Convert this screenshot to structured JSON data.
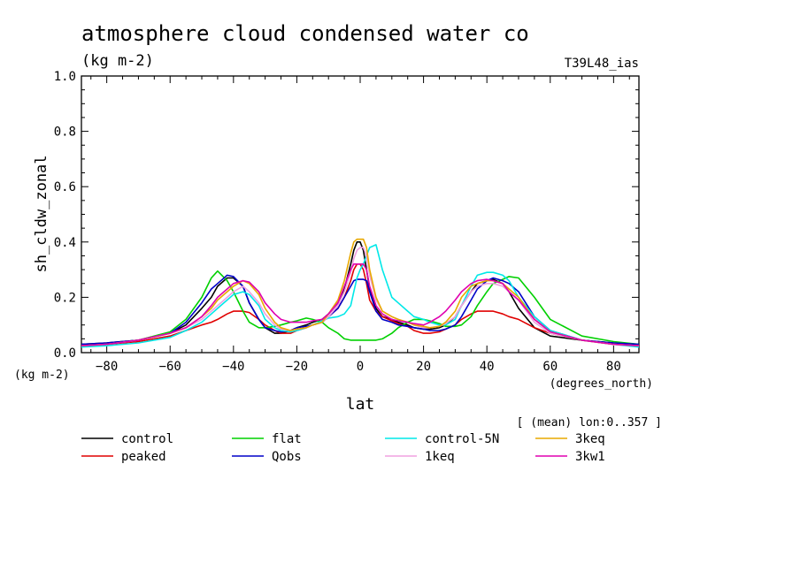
{
  "chart_data": {
    "type": "line",
    "title": "atmosphere cloud condensed water co",
    "subtitle": "(kg m-2)",
    "run_label": "T39L48_ias",
    "ylabel": "sh_cldw_zonal",
    "yunits": "(kg m-2)",
    "xlabel": "lat",
    "xunits": "(degrees_north)",
    "averaging_note": "[ (mean) lon:0..357 ]",
    "xlim": [
      -88,
      88
    ],
    "ylim": [
      0,
      1
    ],
    "xticks": [
      -80,
      -60,
      -40,
      -20,
      0,
      20,
      40,
      60,
      80
    ],
    "yticks": [
      0,
      0.2,
      0.4,
      0.6,
      0.8,
      1
    ],
    "ytick_labels": [
      "0.0",
      "0.2",
      "0.4",
      "0.6",
      "0.8",
      "1.0"
    ],
    "x": [
      -88,
      -80,
      -70,
      -60,
      -55,
      -50,
      -47,
      -45,
      -42,
      -40,
      -37,
      -35,
      -32,
      -30,
      -27,
      -25,
      -22,
      -20,
      -17,
      -15,
      -12,
      -10,
      -7,
      -5,
      -3,
      -2,
      -1,
      0,
      1,
      2,
      3,
      5,
      7,
      10,
      12,
      15,
      17,
      20,
      22,
      25,
      27,
      30,
      32,
      35,
      37,
      40,
      42,
      45,
      47,
      50,
      55,
      60,
      70,
      80,
      88
    ],
    "series": [
      {
        "name": "control",
        "color": "#000000",
        "values": [
          0.03,
          0.035,
          0.045,
          0.07,
          0.1,
          0.16,
          0.2,
          0.24,
          0.27,
          0.27,
          0.24,
          0.18,
          0.12,
          0.09,
          0.07,
          0.07,
          0.08,
          0.09,
          0.1,
          0.11,
          0.12,
          0.14,
          0.18,
          0.23,
          0.32,
          0.37,
          0.4,
          0.4,
          0.37,
          0.3,
          0.23,
          0.16,
          0.13,
          0.12,
          0.11,
          0.1,
          0.09,
          0.085,
          0.085,
          0.09,
          0.1,
          0.13,
          0.17,
          0.22,
          0.25,
          0.26,
          0.265,
          0.25,
          0.22,
          0.16,
          0.09,
          0.06,
          0.045,
          0.035,
          0.03
        ]
      },
      {
        "name": "peaked",
        "color": "#e00000",
        "values": [
          0.025,
          0.03,
          0.04,
          0.06,
          0.08,
          0.1,
          0.11,
          0.12,
          0.14,
          0.15,
          0.15,
          0.145,
          0.12,
          0.1,
          0.08,
          0.07,
          0.07,
          0.08,
          0.09,
          0.1,
          0.11,
          0.13,
          0.16,
          0.2,
          0.26,
          0.3,
          0.32,
          0.32,
          0.3,
          0.25,
          0.19,
          0.15,
          0.13,
          0.115,
          0.105,
          0.095,
          0.08,
          0.07,
          0.07,
          0.075,
          0.085,
          0.1,
          0.12,
          0.14,
          0.15,
          0.15,
          0.15,
          0.14,
          0.13,
          0.12,
          0.09,
          0.07,
          0.045,
          0.03,
          0.025
        ]
      },
      {
        "name": "flat",
        "color": "#00d000",
        "values": [
          0.025,
          0.03,
          0.045,
          0.075,
          0.12,
          0.2,
          0.27,
          0.295,
          0.26,
          0.22,
          0.15,
          0.11,
          0.09,
          0.09,
          0.095,
          0.1,
          0.11,
          0.115,
          0.125,
          0.12,
          0.11,
          0.09,
          0.07,
          0.05,
          0.045,
          0.045,
          0.045,
          0.045,
          0.045,
          0.045,
          0.045,
          0.045,
          0.05,
          0.07,
          0.09,
          0.11,
          0.12,
          0.12,
          0.115,
          0.105,
          0.095,
          0.095,
          0.1,
          0.13,
          0.17,
          0.22,
          0.25,
          0.265,
          0.275,
          0.27,
          0.2,
          0.12,
          0.06,
          0.04,
          0.03
        ]
      },
      {
        "name": "Qobs",
        "color": "#0000c8",
        "values": [
          0.03,
          0.035,
          0.045,
          0.07,
          0.11,
          0.18,
          0.23,
          0.25,
          0.28,
          0.275,
          0.24,
          0.18,
          0.12,
          0.09,
          0.08,
          0.075,
          0.08,
          0.09,
          0.095,
          0.1,
          0.11,
          0.13,
          0.16,
          0.2,
          0.24,
          0.26,
          0.265,
          0.265,
          0.265,
          0.26,
          0.22,
          0.15,
          0.12,
          0.11,
          0.1,
          0.095,
          0.09,
          0.085,
          0.08,
          0.08,
          0.085,
          0.1,
          0.13,
          0.19,
          0.23,
          0.26,
          0.27,
          0.26,
          0.25,
          0.22,
          0.13,
          0.08,
          0.045,
          0.035,
          0.03
        ]
      },
      {
        "name": "control-5N",
        "color": "#00e8e8",
        "values": [
          0.02,
          0.025,
          0.035,
          0.055,
          0.08,
          0.11,
          0.14,
          0.16,
          0.19,
          0.21,
          0.22,
          0.21,
          0.17,
          0.12,
          0.09,
          0.08,
          0.075,
          0.08,
          0.09,
          0.1,
          0.115,
          0.125,
          0.13,
          0.14,
          0.17,
          0.22,
          0.27,
          0.3,
          0.32,
          0.35,
          0.38,
          0.39,
          0.3,
          0.2,
          0.18,
          0.15,
          0.13,
          0.12,
          0.11,
          0.1,
          0.1,
          0.12,
          0.17,
          0.24,
          0.28,
          0.29,
          0.29,
          0.28,
          0.26,
          0.2,
          0.13,
          0.08,
          0.045,
          0.03,
          0.02
        ]
      },
      {
        "name": "1keq",
        "color": "#f0a0e0",
        "values": [
          0.025,
          0.03,
          0.045,
          0.07,
          0.09,
          0.12,
          0.15,
          0.17,
          0.2,
          0.22,
          0.24,
          0.22,
          0.18,
          0.14,
          0.1,
          0.085,
          0.08,
          0.085,
          0.09,
          0.1,
          0.11,
          0.13,
          0.17,
          0.22,
          0.29,
          0.34,
          0.37,
          0.38,
          0.38,
          0.35,
          0.28,
          0.19,
          0.15,
          0.13,
          0.12,
          0.11,
          0.1,
          0.09,
          0.09,
          0.095,
          0.105,
          0.13,
          0.17,
          0.22,
          0.24,
          0.25,
          0.25,
          0.24,
          0.22,
          0.19,
          0.11,
          0.07,
          0.045,
          0.03,
          0.025
        ]
      },
      {
        "name": "3keq",
        "color": "#e8a800",
        "values": [
          0.025,
          0.03,
          0.045,
          0.07,
          0.09,
          0.13,
          0.16,
          0.19,
          0.22,
          0.24,
          0.26,
          0.25,
          0.21,
          0.16,
          0.11,
          0.09,
          0.08,
          0.085,
          0.09,
          0.1,
          0.11,
          0.14,
          0.19,
          0.26,
          0.36,
          0.4,
          0.41,
          0.41,
          0.41,
          0.38,
          0.3,
          0.2,
          0.15,
          0.13,
          0.12,
          0.11,
          0.1,
          0.095,
          0.09,
          0.095,
          0.11,
          0.15,
          0.2,
          0.24,
          0.25,
          0.26,
          0.26,
          0.25,
          0.23,
          0.2,
          0.12,
          0.075,
          0.045,
          0.03,
          0.025
        ]
      },
      {
        "name": "3kw1",
        "color": "#e000b0",
        "values": [
          0.025,
          0.03,
          0.045,
          0.07,
          0.09,
          0.13,
          0.17,
          0.2,
          0.23,
          0.25,
          0.26,
          0.255,
          0.22,
          0.18,
          0.14,
          0.12,
          0.11,
          0.11,
          0.11,
          0.115,
          0.12,
          0.14,
          0.18,
          0.24,
          0.3,
          0.32,
          0.32,
          0.32,
          0.32,
          0.3,
          0.24,
          0.17,
          0.14,
          0.12,
          0.115,
          0.11,
          0.105,
          0.1,
          0.11,
          0.13,
          0.15,
          0.19,
          0.22,
          0.25,
          0.26,
          0.265,
          0.26,
          0.25,
          0.22,
          0.19,
          0.12,
          0.075,
          0.045,
          0.03,
          0.025
        ]
      }
    ],
    "legend_placement": "bottom",
    "grid": false
  }
}
